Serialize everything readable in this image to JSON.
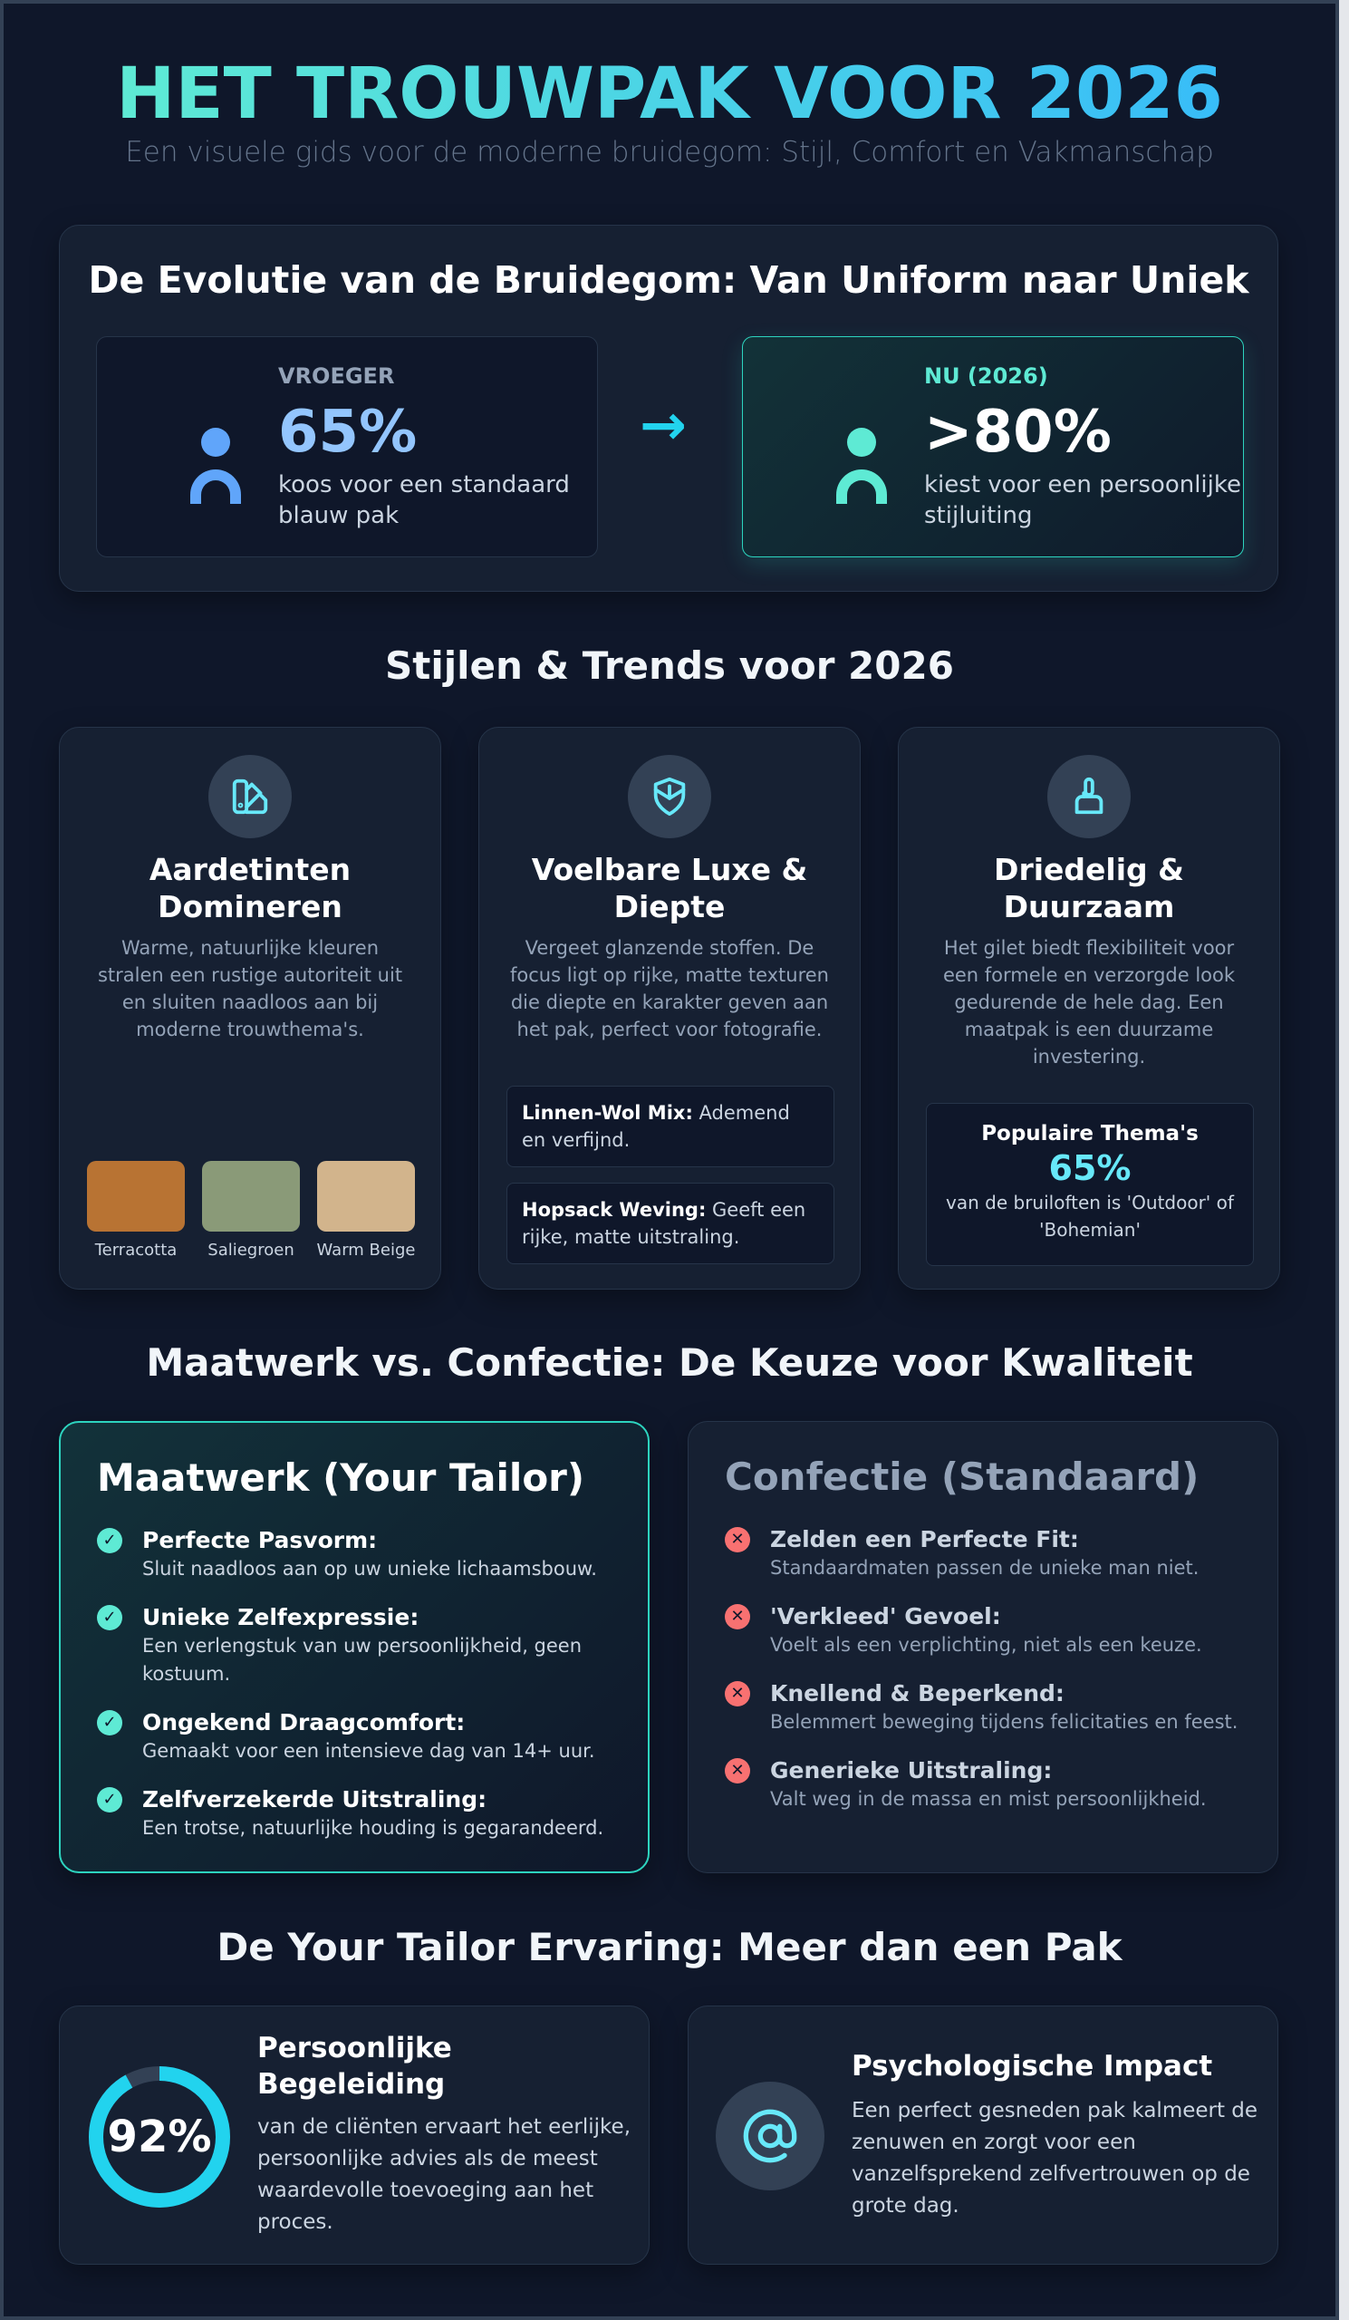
{
  "header": {
    "title": "HET TROUWPAK VOOR 2026",
    "subtitle": "Een visuele gids voor de moderne bruidegom: Stijl, Comfort en Vakmanschap"
  },
  "evolution": {
    "title": "De Evolutie van de Bruidegom: Van Uniform naar Uniek",
    "before": {
      "label": "VROEGER",
      "value": "65%",
      "text": "koos voor een standaard blauw pak",
      "icon": "person-icon",
      "color": "#60a5fa"
    },
    "arrow_icon": "arrow-right-icon",
    "now": {
      "label": "NU (2026)",
      "value": ">80%",
      "text": "kiest voor een persoonlijke stijluiting",
      "icon": "person-icon",
      "color": "#5eead4"
    }
  },
  "trends": {
    "title": "Stijlen & Trends voor 2026",
    "cards": [
      {
        "icon": "palette-swatch-icon",
        "title": "Aardetinten Domineren",
        "text": "Warme, natuurlijke kleuren stralen een rustige autoriteit uit en sluiten naadloos aan bij moderne trouwthema's.",
        "swatches": [
          {
            "name": "Terracotta",
            "color": "#b87333"
          },
          {
            "name": "Saliegroen",
            "color": "#8a9a78"
          },
          {
            "name": "Warm Beige",
            "color": "#d2b48c"
          }
        ]
      },
      {
        "icon": "shield-icon",
        "title": "Voelbare Luxe & Diepte",
        "text": "Vergeet glanzende stoffen. De focus ligt op rijke, matte texturen die diepte en karakter geven aan het pak, perfect voor fotografie.",
        "fabrics": [
          {
            "name": "Linnen-Wol Mix:",
            "text": " Ademend en verfijnd."
          },
          {
            "name": "Hopsack Weving:",
            "text": " Geeft een rijke, matte uitstraling."
          }
        ]
      },
      {
        "icon": "brush-icon",
        "title": "Driedelig & Duurzaam",
        "text": "Het gilet biedt flexibiliteit voor een formele en verzorgde look gedurende de hele dag. Een maatpak is een duurzame investering.",
        "stat": {
          "label": "Populaire Thema's",
          "value": "65%",
          "text": "van de bruiloften is 'Outdoor' of 'Bohemian'"
        }
      }
    ]
  },
  "comparison": {
    "title": "Maatwerk vs. Confectie: De Keuze voor Kwaliteit",
    "maatwerk": {
      "title": "Maatwerk (Your Tailor)",
      "icon": "check-circle-icon",
      "color": "#5eead4",
      "items": [
        {
          "title": "Perfecte Pasvorm:",
          "text": "Sluit naadloos aan op uw unieke lichaamsbouw."
        },
        {
          "title": "Unieke Zelfexpressie:",
          "text": "Een verlengstuk van uw persoonlijkheid, geen kostuum."
        },
        {
          "title": "Ongekend Draagcomfort:",
          "text": "Gemaakt voor een intensieve dag van 14+ uur."
        },
        {
          "title": "Zelfverzekerde Uitstraling:",
          "text": "Een trotse, natuurlijke houding is gegarandeerd."
        }
      ]
    },
    "confectie": {
      "title": "Confectie (Standaard)",
      "icon": "x-circle-icon",
      "color": "#f87171",
      "items": [
        {
          "title": "Zelden een Perfecte Fit:",
          "text": "Standaardmaten passen de unieke man niet."
        },
        {
          "title": "'Verkleed' Gevoel:",
          "text": "Voelt als een verplichting, niet als een keuze."
        },
        {
          "title": "Knellend & Beperkend:",
          "text": "Belemmert beweging tijdens felicitaties en feest."
        },
        {
          "title": "Generieke Uitstraling:",
          "text": "Valt weg in de massa en mist persoonlijkheid."
        }
      ]
    }
  },
  "experience": {
    "title": "De Your Tailor Ervaring: Meer dan een Pak",
    "guidance": {
      "value": "92%",
      "percent": 92,
      "title": "Persoonlijke Begeleiding",
      "text": "van de cliënten ervaart het eerlijke, persoonlijke advies als de meest waardevolle toevoeging aan het proces."
    },
    "impact": {
      "icon": "at-sign-icon",
      "title": "Psychologische Impact",
      "text": "Een perfect gesneden pak kalmeert de zenuwen en zorgt voor een vanzelfsprekend zelfvertrouwen op de grote dag."
    }
  },
  "colors": {
    "background": "#0f172a",
    "card": "#162032",
    "accent_teal": "#2dd4bf",
    "accent_cyan": "#22d3ee",
    "negative": "#f87171"
  }
}
